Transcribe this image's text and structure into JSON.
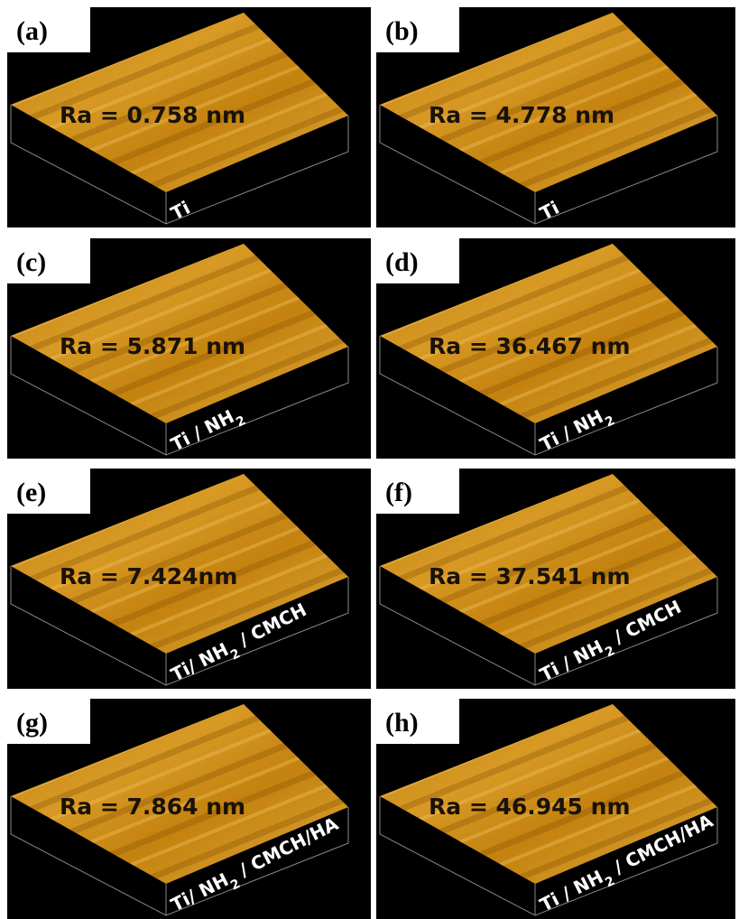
{
  "panels": [
    {
      "tag": "(a)",
      "ra": "Ra = 0.758 nm",
      "label": [
        {
          "text": "Ti"
        }
      ]
    },
    {
      "tag": "(b)",
      "ra": "Ra = 4.778 nm",
      "label": [
        {
          "text": "Ti"
        }
      ]
    },
    {
      "tag": "(c)",
      "ra": "Ra = 5.871 nm",
      "label": [
        {
          "text": "Ti / NH"
        },
        {
          "sub": "2"
        }
      ]
    },
    {
      "tag": "(d)",
      "ra": "Ra = 36.467 nm",
      "label": [
        {
          "text": "Ti / NH"
        },
        {
          "sub": "2"
        }
      ]
    },
    {
      "tag": "(e)",
      "ra": "Ra = 7.424nm",
      "label": [
        {
          "text": "Ti/ NH"
        },
        {
          "sub": "2"
        },
        {
          "text": " / CMCH"
        }
      ]
    },
    {
      "tag": "(f)",
      "ra": "Ra = 37.541 nm",
      "label": [
        {
          "text": "Ti / NH"
        },
        {
          "sub": "2"
        },
        {
          "text": " / CMCH"
        }
      ]
    },
    {
      "tag": "(g)",
      "ra": "Ra = 7.864  nm",
      "label": [
        {
          "text": "Ti/ NH"
        },
        {
          "sub": "2"
        },
        {
          "text": " / CMCH/HA"
        }
      ]
    },
    {
      "tag": "(h)",
      "ra": "Ra = 46.945 nm",
      "label": [
        {
          "text": "Ti / NH"
        },
        {
          "sub": "2"
        },
        {
          "text": " / CMCH/HA"
        }
      ]
    }
  ]
}
